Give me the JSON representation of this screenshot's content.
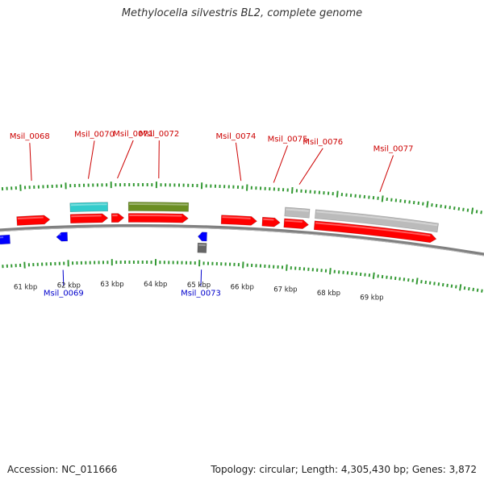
{
  "title": "Methylocella silvestris BL2, complete genome",
  "footer": {
    "accession": "Accession: NC_011666",
    "summary": "Topology: circular; Length: 4,305,430 bp; Genes: 3,872"
  },
  "colors": {
    "forward_cds": "#ff0000",
    "reverse_cds": "#0000ff",
    "forward_label": "#cc0000",
    "reverse_label": "#0000cc",
    "backbone": "#808080",
    "ticks": "#339933",
    "rna_cyan": "#33cccc",
    "rna_olive": "#6b8e23",
    "other_gray": "#bbbbbb",
    "reverse_other": "#666666"
  },
  "axis": {
    "unit": "kbp",
    "scale_labels": [
      "61 kbp",
      "62 kbp",
      "63 kbp",
      "64 kbp",
      "65 kbp",
      "66 kbp",
      "67 kbp",
      "68 kbp",
      "69 kbp"
    ]
  },
  "features": [
    {
      "id": "f1",
      "strand": "-",
      "kind": "cds",
      "start_kbp": 60.35,
      "end_kbp": 60.7,
      "label": ""
    },
    {
      "id": "f2",
      "strand": "+",
      "kind": "cds",
      "start_kbp": 60.88,
      "end_kbp": 61.62,
      "label": "Msil_0068"
    },
    {
      "id": "f3",
      "strand": "-",
      "kind": "cds",
      "start_kbp": 61.75,
      "end_kbp": 62.0,
      "label": "Msil_0069"
    },
    {
      "id": "f4",
      "strand": "+",
      "kind": "cds",
      "start_kbp": 62.08,
      "end_kbp": 62.92,
      "label": "Msil_0070"
    },
    {
      "id": "f4b",
      "strand": "+",
      "kind": "rna_cyan",
      "start_kbp": 62.08,
      "end_kbp": 62.92,
      "label": ""
    },
    {
      "id": "f5",
      "strand": "+",
      "kind": "cds",
      "start_kbp": 63.0,
      "end_kbp": 63.28,
      "label": "Msil_0071"
    },
    {
      "id": "f6",
      "strand": "+",
      "kind": "cds",
      "start_kbp": 63.38,
      "end_kbp": 64.72,
      "label": "Msil_0072"
    },
    {
      "id": "f6b",
      "strand": "+",
      "kind": "rna_olive",
      "start_kbp": 63.38,
      "end_kbp": 64.72,
      "label": ""
    },
    {
      "id": "f7",
      "strand": "-",
      "kind": "cds",
      "start_kbp": 64.95,
      "end_kbp": 65.15,
      "label": ""
    },
    {
      "id": "f8",
      "strand": "-",
      "kind": "other",
      "start_kbp": 64.95,
      "end_kbp": 65.15,
      "label": "Msil_0073"
    },
    {
      "id": "f9",
      "strand": "+",
      "kind": "cds",
      "start_kbp": 65.46,
      "end_kbp": 66.26,
      "label": "Msil_0074"
    },
    {
      "id": "f10",
      "strand": "+",
      "kind": "cds",
      "start_kbp": 66.38,
      "end_kbp": 66.78,
      "label": "Msil_0075"
    },
    {
      "id": "f11",
      "strand": "+",
      "kind": "cds",
      "start_kbp": 66.87,
      "end_kbp": 67.42,
      "label": "Msil_0076"
    },
    {
      "id": "f11b",
      "strand": "+",
      "kind": "other",
      "start_kbp": 66.87,
      "end_kbp": 67.42,
      "label": ""
    },
    {
      "id": "f12",
      "strand": "+",
      "kind": "cds",
      "start_kbp": 67.55,
      "end_kbp": 70.3,
      "label": "Msil_0077"
    },
    {
      "id": "f12b",
      "strand": "+",
      "kind": "other",
      "start_kbp": 67.55,
      "end_kbp": 70.3,
      "label": ""
    }
  ]
}
